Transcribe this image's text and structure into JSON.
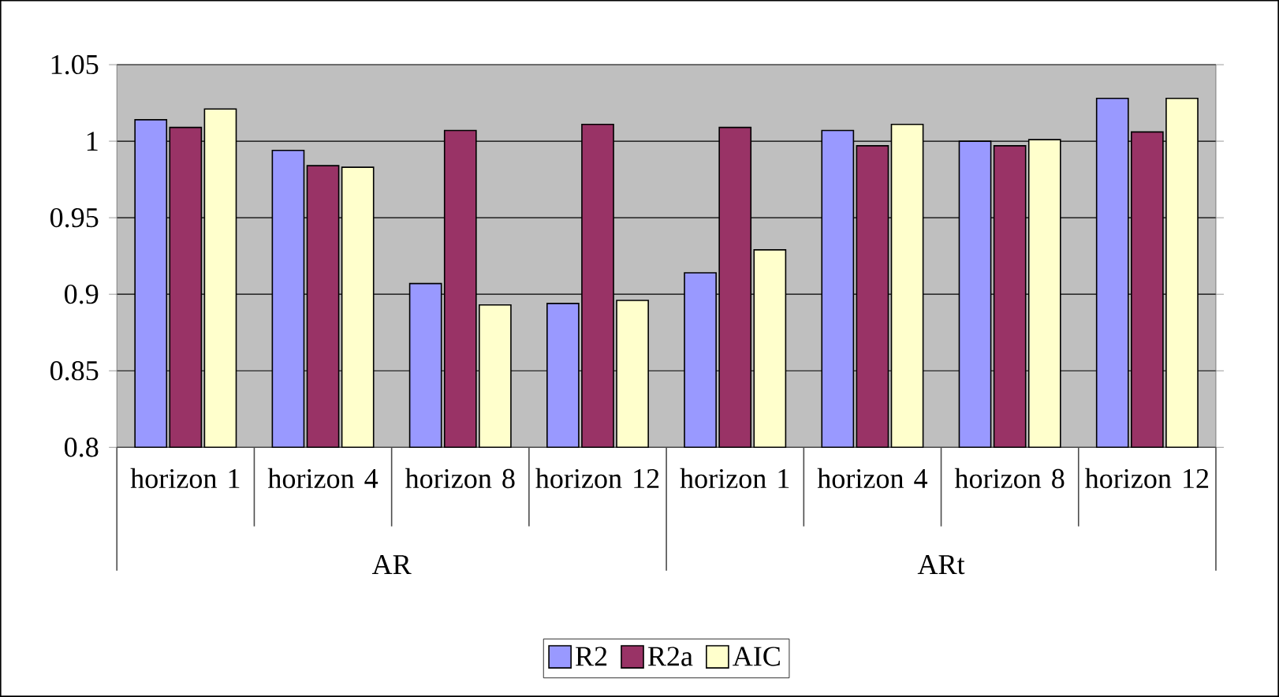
{
  "chart_data": {
    "type": "bar",
    "categories": [
      "horizon 1",
      "horizon 4",
      "horizon 8",
      "horizon 12",
      "horizon 1",
      "horizon 4",
      "horizon 8",
      "horizon 12"
    ],
    "annotations": [
      "AR",
      "ARt"
    ],
    "series": [
      {
        "name": "R2",
        "color": "#9999ff",
        "values": [
          1.014,
          0.994,
          0.907,
          0.894,
          0.914,
          1.007,
          1.0,
          1.028
        ]
      },
      {
        "name": "R2a",
        "color": "#993366",
        "values": [
          1.009,
          0.984,
          1.007,
          1.011,
          1.009,
          0.997,
          0.997,
          1.006
        ]
      },
      {
        "name": "AIC",
        "color": "#ffffcc",
        "values": [
          1.021,
          0.983,
          0.893,
          0.896,
          0.929,
          1.011,
          1.001,
          1.028
        ]
      }
    ],
    "ylim": [
      0.8,
      1.05
    ],
    "yticks": [
      0.8,
      0.85,
      0.9,
      0.95,
      1,
      1.05
    ],
    "grid": "y",
    "legend": "bottom"
  }
}
